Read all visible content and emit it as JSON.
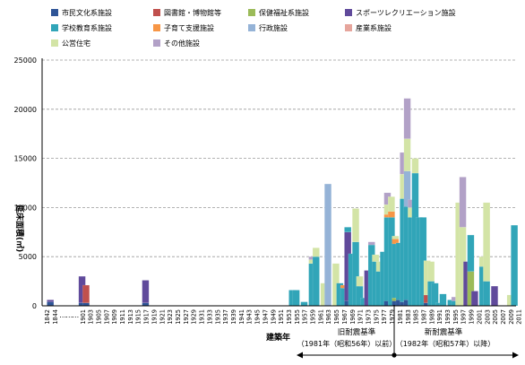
{
  "chart_data": {
    "type": "bar",
    "stacked": true,
    "title": "",
    "xlabel": "建築年",
    "ylabel": "延床面積(㎡)",
    "ylim": [
      0,
      25000
    ],
    "y_ticks": [
      0,
      5000,
      10000,
      15000,
      20000,
      25000
    ],
    "grid": true,
    "legend_position": "top",
    "series": [
      {
        "name": "市民文化系施設",
        "color": "#2f5597"
      },
      {
        "name": "図書館・博物館等",
        "color": "#c0504d"
      },
      {
        "name": "保健福祉系施設",
        "color": "#9bbb59"
      },
      {
        "name": "スポーツレクリエーション施設",
        "color": "#604a9b"
      },
      {
        "name": "学校教育系施設",
        "color": "#31a5b8"
      },
      {
        "name": "子育て支援施設",
        "color": "#f79646"
      },
      {
        "name": "行政施設",
        "color": "#95b3d7"
      },
      {
        "name": "産業系施設",
        "color": "#e6a59c"
      },
      {
        "name": "公営住宅",
        "color": "#d3e4a6"
      },
      {
        "name": "その他施設",
        "color": "#b2a1c7"
      }
    ],
    "categories": [
      "1842",
      "1844",
      "…",
      "…",
      "…",
      "1901",
      "1903",
      "1905",
      "1907",
      "1909",
      "1911",
      "1913",
      "1915",
      "1917",
      "1919",
      "1921",
      "1923",
      "1925",
      "1927",
      "1929",
      "1931",
      "1933",
      "1935",
      "1937",
      "1939",
      "1941",
      "1943",
      "1945",
      "1947",
      "1949",
      "1951",
      "1953",
      "1955",
      "1957",
      "1959",
      "1961",
      "1963",
      "1965",
      "1967",
      "1969",
      "1971",
      "1973",
      "1975",
      "1977",
      "1979",
      "1981",
      "1983",
      "1985",
      "1987",
      "1989",
      "1991",
      "1993",
      "1995",
      "1997",
      "1999",
      "2001",
      "2003",
      "2005",
      "2007",
      "2009",
      "2011"
    ],
    "bars": [
      {
        "x": "1843",
        "segments": [
          400,
          0,
          0,
          200,
          0,
          0,
          0,
          0,
          0,
          0
        ]
      },
      {
        "x": "1901",
        "segments": [
          300,
          0,
          0,
          2700,
          0,
          0,
          0,
          0,
          0,
          0
        ]
      },
      {
        "x": "1902",
        "segments": [
          300,
          1800,
          0,
          0,
          0,
          0,
          0,
          0,
          0,
          0
        ]
      },
      {
        "x": "1917",
        "segments": [
          300,
          0,
          0,
          2300,
          0,
          0,
          0,
          0,
          0,
          0
        ]
      },
      {
        "x": "1954",
        "segments": [
          0,
          0,
          0,
          0,
          1600,
          0,
          0,
          0,
          0,
          0
        ]
      },
      {
        "x": "1955",
        "segments": [
          0,
          0,
          0,
          0,
          1600,
          0,
          0,
          0,
          0,
          0
        ]
      },
      {
        "x": "1957",
        "segments": [
          0,
          0,
          0,
          0,
          400,
          0,
          0,
          0,
          0,
          0
        ]
      },
      {
        "x": "1958",
        "segments": [
          0,
          0,
          0,
          0,
          0,
          0,
          0,
          0,
          0,
          0
        ]
      },
      {
        "x": "1959",
        "segments": [
          0,
          0,
          0,
          0,
          4300,
          0,
          0,
          0,
          400,
          300
        ]
      },
      {
        "x": "1960",
        "segments": [
          0,
          0,
          0,
          0,
          5000,
          0,
          0,
          0,
          900,
          0
        ]
      },
      {
        "x": "1962",
        "segments": [
          0,
          0,
          0,
          0,
          0,
          0,
          0,
          0,
          2300,
          0
        ]
      },
      {
        "x": "1963",
        "segments": [
          0,
          0,
          0,
          0,
          0,
          0,
          12400,
          0,
          0,
          0
        ]
      },
      {
        "x": "1965",
        "segments": [
          0,
          0,
          0,
          0,
          0,
          0,
          0,
          0,
          4300,
          0
        ]
      },
      {
        "x": "1966",
        "segments": [
          0,
          0,
          0,
          0,
          2300,
          0,
          0,
          0,
          0,
          0
        ]
      },
      {
        "x": "1967",
        "segments": [
          0,
          0,
          0,
          0,
          1800,
          300,
          0,
          0,
          0,
          0
        ]
      },
      {
        "x": "1968",
        "segments": [
          500,
          0,
          0,
          7000,
          500,
          0,
          0,
          0,
          0,
          0
        ]
      },
      {
        "x": "1969",
        "segments": [
          0,
          0,
          0,
          0,
          5300,
          0,
          0,
          0,
          0,
          0
        ]
      },
      {
        "x": "1970",
        "segments": [
          0,
          0,
          0,
          0,
          6500,
          0,
          0,
          0,
          3400,
          0
        ]
      },
      {
        "x": "1971",
        "segments": [
          0,
          0,
          0,
          0,
          2000,
          0,
          0,
          0,
          1000,
          0
        ]
      },
      {
        "x": "1972",
        "segments": [
          0,
          0,
          0,
          0,
          800,
          0,
          0,
          0,
          0,
          0
        ]
      },
      {
        "x": "1973",
        "segments": [
          0,
          0,
          0,
          3600,
          0,
          0,
          0,
          0,
          0,
          0
        ]
      },
      {
        "x": "1974",
        "segments": [
          0,
          0,
          0,
          0,
          6200,
          0,
          0,
          0,
          0,
          300
        ]
      },
      {
        "x": "1975",
        "segments": [
          0,
          0,
          0,
          0,
          4500,
          0,
          0,
          0,
          700,
          0
        ]
      },
      {
        "x": "1976",
        "segments": [
          0,
          0,
          0,
          0,
          3500,
          0,
          0,
          0,
          1000,
          0
        ]
      },
      {
        "x": "1977",
        "segments": [
          0,
          0,
          0,
          0,
          5500,
          0,
          0,
          0,
          0,
          0
        ]
      },
      {
        "x": "1978",
        "segments": [
          500,
          0,
          0,
          0,
          8500,
          300,
          0,
          0,
          1000,
          1200
        ]
      },
      {
        "x": "1979",
        "segments": [
          0,
          0,
          0,
          0,
          9000,
          600,
          0,
          0,
          1500,
          0
        ]
      },
      {
        "x": "1980",
        "segments": [
          500,
          0,
          300,
          0,
          5500,
          500,
          0,
          0,
          300,
          0
        ]
      },
      {
        "x": "1981",
        "segments": [
          600,
          0,
          0,
          0,
          5800,
          0,
          0,
          0,
          0,
          0
        ]
      },
      {
        "x": "1982",
        "segments": [
          400,
          0,
          0,
          0,
          10500,
          0,
          0,
          0,
          2500,
          2200
        ]
      },
      {
        "x": "1983",
        "segments": [
          600,
          0,
          0,
          0,
          9500,
          0,
          3600,
          0,
          3300,
          4100
        ]
      },
      {
        "x": "1984",
        "segments": [
          0,
          0,
          0,
          0,
          9000,
          0,
          0,
          0,
          1000,
          800
        ]
      },
      {
        "x": "1985",
        "segments": [
          0,
          0,
          0,
          0,
          13500,
          0,
          0,
          0,
          1500,
          0
        ]
      },
      {
        "x": "1986",
        "segments": [
          0,
          0,
          0,
          0,
          9000,
          0,
          0,
          0,
          0,
          0
        ]
      },
      {
        "x": "1987",
        "segments": [
          0,
          0,
          0,
          0,
          9000,
          0,
          0,
          0,
          0,
          0
        ]
      },
      {
        "x": "1988",
        "segments": [
          300,
          800,
          0,
          0,
          0,
          0,
          0,
          0,
          3500,
          0
        ]
      },
      {
        "x": "1989",
        "segments": [
          0,
          0,
          0,
          0,
          2500,
          0,
          0,
          0,
          2000,
          0
        ]
      },
      {
        "x": "1990",
        "segments": [
          0,
          0,
          0,
          0,
          2300,
          0,
          0,
          0,
          0,
          0
        ]
      },
      {
        "x": "1991",
        "segments": [
          0,
          0,
          0,
          0,
          300,
          0,
          0,
          0,
          0,
          0
        ]
      },
      {
        "x": "1992",
        "segments": [
          0,
          0,
          0,
          0,
          1200,
          0,
          0,
          0,
          0,
          0
        ]
      },
      {
        "x": "1994",
        "segments": [
          0,
          0,
          0,
          0,
          600,
          0,
          0,
          0,
          0,
          0
        ]
      },
      {
        "x": "1995",
        "segments": [
          0,
          0,
          0,
          0,
          500,
          0,
          0,
          0,
          0,
          400
        ]
      },
      {
        "x": "1996",
        "segments": [
          0,
          0,
          0,
          0,
          0,
          0,
          0,
          0,
          10500,
          0
        ]
      },
      {
        "x": "1997",
        "segments": [
          0,
          0,
          0,
          0,
          0,
          0,
          0,
          0,
          8000,
          5100
        ]
      },
      {
        "x": "1998",
        "segments": [
          0,
          0,
          0,
          4500,
          0,
          0,
          0,
          0,
          0,
          0
        ]
      },
      {
        "x": "1999",
        "segments": [
          0,
          0,
          3500,
          0,
          3700,
          0,
          0,
          0,
          0,
          0
        ]
      },
      {
        "x": "2000",
        "segments": [
          0,
          0,
          0,
          1500,
          0,
          0,
          0,
          0,
          0,
          0
        ]
      },
      {
        "x": "2002",
        "segments": [
          0,
          0,
          0,
          0,
          4000,
          0,
          0,
          0,
          1000,
          0
        ]
      },
      {
        "x": "2003",
        "segments": [
          0,
          0,
          0,
          0,
          2500,
          0,
          0,
          0,
          8000,
          0
        ]
      },
      {
        "x": "2004",
        "segments": [
          0,
          0,
          0,
          0,
          0,
          0,
          0,
          0,
          0,
          0
        ]
      },
      {
        "x": "2005",
        "segments": [
          0,
          0,
          0,
          2000,
          0,
          0,
          0,
          0,
          0,
          0
        ]
      },
      {
        "x": "2009",
        "segments": [
          0,
          0,
          0,
          0,
          0,
          0,
          0,
          0,
          1100,
          0
        ]
      },
      {
        "x": "2010",
        "segments": [
          0,
          0,
          0,
          0,
          8200,
          0,
          0,
          0,
          0,
          0
        ]
      }
    ],
    "annotations": {
      "old_standard_title": "旧耐震基準",
      "old_standard_period": "（1981年（昭和56年）以前）",
      "new_standard_title": "新耐震基準",
      "new_standard_period": "（1982年（昭和57年）以降）"
    }
  }
}
